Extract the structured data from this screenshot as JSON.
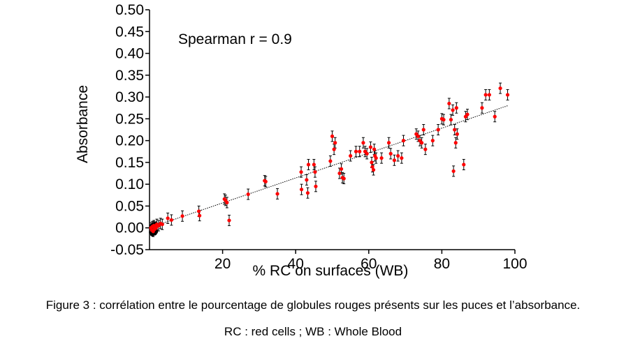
{
  "chart_data": {
    "type": "scatter",
    "annotation": "Spearman r = 0.9",
    "xlabel": "% RC on surfaces (WB)",
    "ylabel": "Absorbance",
    "xlim": [
      0,
      100
    ],
    "ylim": [
      -0.05,
      0.5
    ],
    "xticks": [
      20,
      40,
      60,
      80,
      100
    ],
    "yticks": [
      -0.05,
      0.0,
      0.05,
      0.1,
      0.15,
      0.2,
      0.25,
      0.3,
      0.35,
      0.4,
      0.45,
      0.5
    ],
    "ytick_labels": [
      "-0.05",
      "0.00",
      "0.05",
      "0.10",
      "0.15",
      "0.20",
      "0.25",
      "0.30",
      "0.35",
      "0.40",
      "0.45",
      "0.50"
    ],
    "grid": false,
    "trendline": {
      "style": "dotted",
      "x": [
        0,
        98
      ],
      "y": [
        0.0,
        0.28
      ]
    },
    "colors": {
      "points": "#ff0000",
      "error_bars": "#000000",
      "cluster": "#000000"
    },
    "error_bar": 0.012,
    "points": [
      {
        "x": 0.4,
        "y": 0.0
      },
      {
        "x": 0.6,
        "y": -0.005
      },
      {
        "x": 0.8,
        "y": 0.003
      },
      {
        "x": 1.0,
        "y": -0.008
      },
      {
        "x": 1.2,
        "y": 0.005
      },
      {
        "x": 1.4,
        "y": -0.003
      },
      {
        "x": 1.6,
        "y": 0.002
      },
      {
        "x": 1.8,
        "y": 0.0
      },
      {
        "x": 2.0,
        "y": 0.008
      },
      {
        "x": 2.5,
        "y": 0.005
      },
      {
        "x": 3.0,
        "y": 0.01
      },
      {
        "x": 3.5,
        "y": 0.008
      },
      {
        "x": 5.0,
        "y": 0.022
      },
      {
        "x": 6.0,
        "y": 0.018
      },
      {
        "x": 9.0,
        "y": 0.027
      },
      {
        "x": 13.5,
        "y": 0.038
      },
      {
        "x": 13.7,
        "y": 0.028
      },
      {
        "x": 20.5,
        "y": 0.066
      },
      {
        "x": 20.8,
        "y": 0.063
      },
      {
        "x": 21.2,
        "y": 0.058
      },
      {
        "x": 21.8,
        "y": 0.017
      },
      {
        "x": 27.0,
        "y": 0.077
      },
      {
        "x": 31.5,
        "y": 0.108
      },
      {
        "x": 31.8,
        "y": 0.106
      },
      {
        "x": 35.0,
        "y": 0.078
      },
      {
        "x": 41.5,
        "y": 0.128
      },
      {
        "x": 41.6,
        "y": 0.088
      },
      {
        "x": 43.0,
        "y": 0.11
      },
      {
        "x": 43.3,
        "y": 0.08
      },
      {
        "x": 43.5,
        "y": 0.145
      },
      {
        "x": 45.0,
        "y": 0.145
      },
      {
        "x": 45.3,
        "y": 0.128
      },
      {
        "x": 45.5,
        "y": 0.095
      },
      {
        "x": 49.5,
        "y": 0.153
      },
      {
        "x": 50.0,
        "y": 0.21
      },
      {
        "x": 50.5,
        "y": 0.18
      },
      {
        "x": 50.8,
        "y": 0.195
      },
      {
        "x": 52.0,
        "y": 0.125
      },
      {
        "x": 52.5,
        "y": 0.135
      },
      {
        "x": 52.8,
        "y": 0.115
      },
      {
        "x": 53.2,
        "y": 0.113
      },
      {
        "x": 55.0,
        "y": 0.165
      },
      {
        "x": 56.5,
        "y": 0.175
      },
      {
        "x": 57.5,
        "y": 0.175
      },
      {
        "x": 58.5,
        "y": 0.195
      },
      {
        "x": 59.0,
        "y": 0.175
      },
      {
        "x": 59.5,
        "y": 0.17
      },
      {
        "x": 60.5,
        "y": 0.185
      },
      {
        "x": 60.8,
        "y": 0.15
      },
      {
        "x": 61.0,
        "y": 0.14
      },
      {
        "x": 61.3,
        "y": 0.133
      },
      {
        "x": 61.5,
        "y": 0.18
      },
      {
        "x": 61.7,
        "y": 0.165
      },
      {
        "x": 62.0,
        "y": 0.16
      },
      {
        "x": 63.5,
        "y": 0.16
      },
      {
        "x": 65.5,
        "y": 0.195
      },
      {
        "x": 66.0,
        "y": 0.17
      },
      {
        "x": 67.0,
        "y": 0.155
      },
      {
        "x": 68.0,
        "y": 0.165
      },
      {
        "x": 69.0,
        "y": 0.16
      },
      {
        "x": 69.5,
        "y": 0.2
      },
      {
        "x": 73.0,
        "y": 0.215
      },
      {
        "x": 73.5,
        "y": 0.21
      },
      {
        "x": 74.0,
        "y": 0.2
      },
      {
        "x": 74.5,
        "y": 0.195
      },
      {
        "x": 75.0,
        "y": 0.225
      },
      {
        "x": 75.5,
        "y": 0.18
      },
      {
        "x": 77.5,
        "y": 0.2
      },
      {
        "x": 79.0,
        "y": 0.225
      },
      {
        "x": 80.0,
        "y": 0.25
      },
      {
        "x": 80.5,
        "y": 0.248
      },
      {
        "x": 82.0,
        "y": 0.285
      },
      {
        "x": 82.5,
        "y": 0.248
      },
      {
        "x": 83.0,
        "y": 0.27
      },
      {
        "x": 83.2,
        "y": 0.13
      },
      {
        "x": 83.5,
        "y": 0.225
      },
      {
        "x": 83.8,
        "y": 0.195
      },
      {
        "x": 84.0,
        "y": 0.275
      },
      {
        "x": 84.2,
        "y": 0.215
      },
      {
        "x": 86.0,
        "y": 0.145
      },
      {
        "x": 86.5,
        "y": 0.255
      },
      {
        "x": 87.0,
        "y": 0.26
      },
      {
        "x": 91.0,
        "y": 0.275
      },
      {
        "x": 92.0,
        "y": 0.305
      },
      {
        "x": 93.0,
        "y": 0.305
      },
      {
        "x": 94.5,
        "y": 0.255
      },
      {
        "x": 96.0,
        "y": 0.32
      },
      {
        "x": 98.0,
        "y": 0.305
      }
    ],
    "cluster": [
      {
        "x": 0.5,
        "y": -0.01
      },
      {
        "x": 0.8,
        "y": -0.014
      },
      {
        "x": 1.1,
        "y": -0.006
      },
      {
        "x": 1.4,
        "y": -0.012
      },
      {
        "x": 0.6,
        "y": 0.004
      },
      {
        "x": 1.7,
        "y": -0.008
      },
      {
        "x": 1.2,
        "y": 0.008
      },
      {
        "x": 0.9,
        "y": -0.002
      }
    ]
  },
  "caption": {
    "line1": "Figure 3 : corrélation entre le pourcentage de globules rouges présents sur les puces et l’absorbance.",
    "line2": "RC : red cells ; WB : Whole Blood"
  }
}
